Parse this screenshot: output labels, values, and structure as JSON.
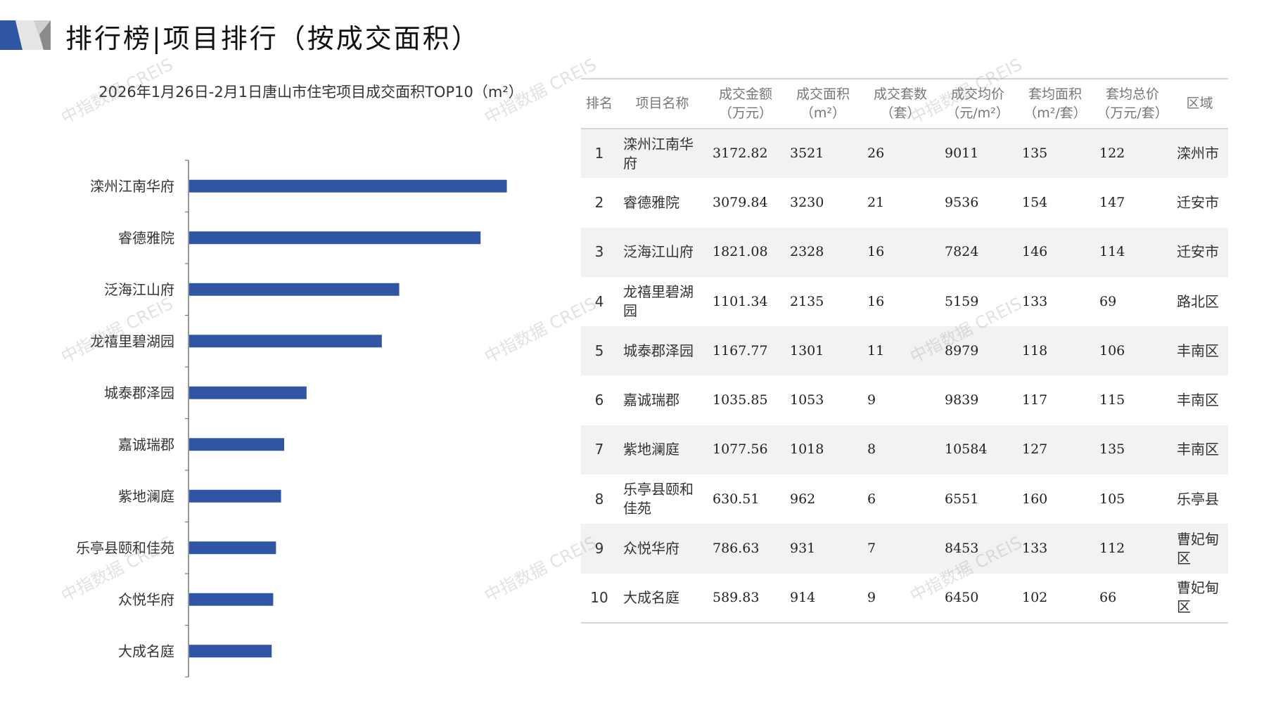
{
  "header": {
    "title": "排行榜|项目排行（按成交面积）"
  },
  "watermark": "中指数据 CREIS",
  "chart_data": {
    "type": "bar",
    "orientation": "horizontal",
    "title": "2026年1月26日-2月1日唐山市住宅项目成交面积TOP10（m²）",
    "categories": [
      "滦州江南华府",
      "睿德雅院",
      "泛海江山府",
      "龙禧里碧湖园",
      "城泰郡泽园",
      "嘉诚瑞郡",
      "紫地澜庭",
      "乐亭县颐和佳苑",
      "众悦华府",
      "大成名庭"
    ],
    "values": [
      3521,
      3230,
      2328,
      2135,
      1301,
      1053,
      1018,
      962,
      931,
      914
    ],
    "color": "#2f55a4",
    "xlim": [
      0,
      4000
    ],
    "grid": false
  },
  "table": {
    "headers": [
      [
        "排名",
        ""
      ],
      [
        "项目名称",
        ""
      ],
      [
        "成交金额",
        "（万元）"
      ],
      [
        "成交面积",
        "（m²）"
      ],
      [
        "成交套数",
        "（套）"
      ],
      [
        "成交均价",
        "（元/m²）"
      ],
      [
        "套均面积",
        "（m²/套）"
      ],
      [
        "套均总价",
        "（万元/套）"
      ],
      [
        "区域",
        ""
      ]
    ],
    "rows": [
      [
        "1",
        "滦州江南华府",
        "3172.82",
        "3521",
        "26",
        "9011",
        "135",
        "122",
        "滦州市"
      ],
      [
        "2",
        "睿德雅院",
        "3079.84",
        "3230",
        "21",
        "9536",
        "154",
        "147",
        "迁安市"
      ],
      [
        "3",
        "泛海江山府",
        "1821.08",
        "2328",
        "16",
        "7824",
        "146",
        "114",
        "迁安市"
      ],
      [
        "4",
        "龙禧里碧湖园",
        "1101.34",
        "2135",
        "16",
        "5159",
        "133",
        "69",
        "路北区"
      ],
      [
        "5",
        "城泰郡泽园",
        "1167.77",
        "1301",
        "11",
        "8979",
        "118",
        "106",
        "丰南区"
      ],
      [
        "6",
        "嘉诚瑞郡",
        "1035.85",
        "1053",
        "9",
        "9839",
        "117",
        "115",
        "丰南区"
      ],
      [
        "7",
        "紫地澜庭",
        "1077.56",
        "1018",
        "8",
        "10584",
        "127",
        "135",
        "丰南区"
      ],
      [
        "8",
        "乐亭县颐和佳苑",
        "630.51",
        "962",
        "6",
        "6551",
        "160",
        "105",
        "乐亭县"
      ],
      [
        "9",
        "众悦华府",
        "786.63",
        "931",
        "7",
        "8453",
        "133",
        "112",
        "曹妃甸区"
      ],
      [
        "10",
        "大成名庭",
        "589.83",
        "914",
        "9",
        "6450",
        "102",
        "66",
        "曹妃甸区"
      ]
    ]
  }
}
